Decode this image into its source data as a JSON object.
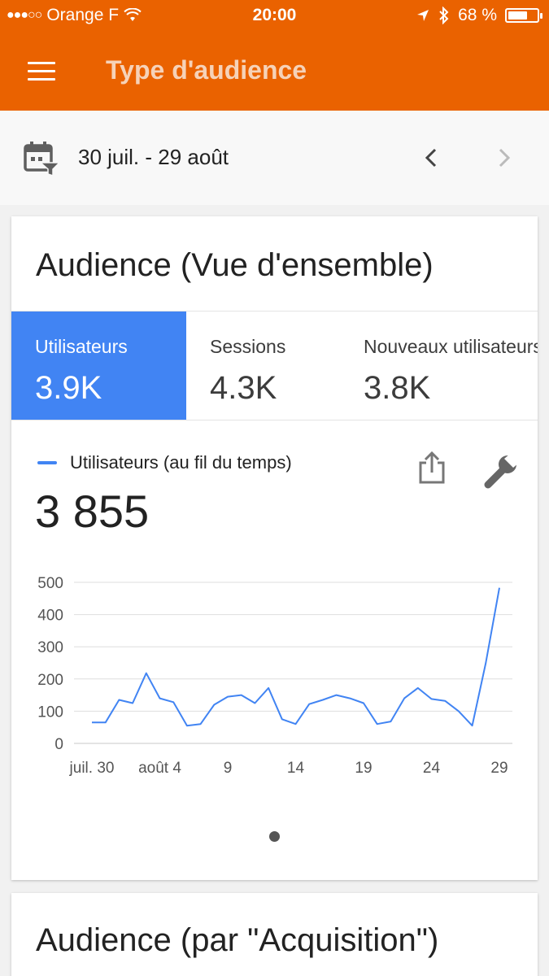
{
  "status_bar": {
    "carrier": "Orange F",
    "time": "20:00",
    "battery": "68 %",
    "battery_level": 0.68
  },
  "app_bar": {
    "title": "Type d'audience"
  },
  "date_bar": {
    "range": "30 juil. - 29 août"
  },
  "overview_card": {
    "title": "Audience (Vue d'ensemble)",
    "tabs": [
      {
        "label": "Utilisateurs",
        "value": "3.9K",
        "active": true
      },
      {
        "label": "Sessions",
        "value": "4.3K",
        "active": false
      },
      {
        "label": "Nouveaux utilisateurs",
        "value": "3.8K",
        "active": false
      }
    ],
    "metric": {
      "label": "Utilisateurs (au fil du temps)",
      "total": "3 855"
    }
  },
  "acquisition_card": {
    "title": "Audience (par \"Acquisition\")"
  },
  "colors": {
    "brand": "#ea6200",
    "accent": "#4184f3"
  },
  "chart_data": {
    "type": "line",
    "x_tick_labels": [
      "juil. 30",
      "août 4",
      "9",
      "14",
      "19",
      "24",
      "29"
    ],
    "y_ticks": [
      0,
      100,
      200,
      300,
      400,
      500
    ],
    "ylim": [
      0,
      500
    ],
    "grid": true,
    "series": [
      {
        "name": "Utilisateurs",
        "color": "#4184f3",
        "x": [
          "30 juil.",
          "31 juil.",
          "1 août",
          "2 août",
          "3 août",
          "4 août",
          "5 août",
          "6 août",
          "7 août",
          "8 août",
          "9 août",
          "10 août",
          "11 août",
          "12 août",
          "13 août",
          "14 août",
          "15 août",
          "16 août",
          "17 août",
          "18 août",
          "19 août",
          "20 août",
          "21 août",
          "22 août",
          "23 août",
          "24 août",
          "25 août",
          "26 août",
          "27 août",
          "28 août",
          "29 août"
        ],
        "values": [
          65,
          65,
          135,
          125,
          218,
          140,
          128,
          55,
          60,
          120,
          145,
          150,
          125,
          172,
          75,
          60,
          122,
          135,
          150,
          140,
          125,
          60,
          68,
          140,
          172,
          138,
          132,
          100,
          55,
          250,
          483
        ]
      }
    ]
  }
}
